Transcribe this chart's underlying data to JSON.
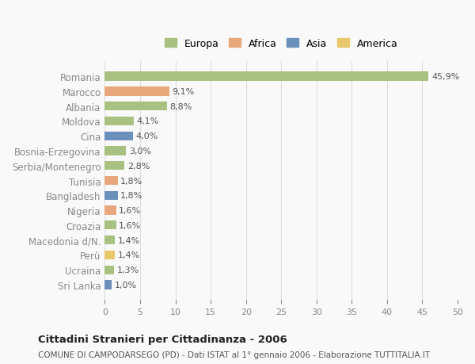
{
  "countries": [
    "Romania",
    "Marocco",
    "Albania",
    "Moldova",
    "Cina",
    "Bosnia-Erzegovina",
    "Serbia/Montenegro",
    "Tunisia",
    "Bangladesh",
    "Nigeria",
    "Croazia",
    "Macedonia d/N.",
    "Perù",
    "Ucraina",
    "Sri Lanka"
  ],
  "values": [
    45.9,
    9.1,
    8.8,
    4.1,
    4.0,
    3.0,
    2.8,
    1.8,
    1.8,
    1.6,
    1.6,
    1.4,
    1.4,
    1.3,
    1.0
  ],
  "labels": [
    "45,9%",
    "9,1%",
    "8,8%",
    "4,1%",
    "4,0%",
    "3,0%",
    "2,8%",
    "1,8%",
    "1,8%",
    "1,6%",
    "1,6%",
    "1,4%",
    "1,4%",
    "1,3%",
    "1,0%"
  ],
  "continents": [
    "Europa",
    "Africa",
    "Europa",
    "Europa",
    "Asia",
    "Europa",
    "Europa",
    "Africa",
    "Asia",
    "Africa",
    "Europa",
    "Europa",
    "America",
    "Europa",
    "Asia"
  ],
  "colors": {
    "Europa": "#a8c080",
    "Africa": "#e8a87c",
    "Asia": "#6a8fbb",
    "America": "#e8c86a"
  },
  "legend_colors": {
    "Europa": "#a8c080",
    "Africa": "#e8a87c",
    "Asia": "#6a8fbb",
    "America": "#e8c86a"
  },
  "xlim": [
    0,
    50
  ],
  "xticks": [
    0,
    5,
    10,
    15,
    20,
    25,
    30,
    35,
    40,
    45,
    50
  ],
  "title": "Cittadini Stranieri per Cittadinanza - 2006",
  "subtitle": "COMUNE DI CAMPODARSEGO (PD) - Dati ISTAT al 1° gennaio 2006 - Elaborazione TUTTITALIA.IT",
  "background_color": "#f9f9f9",
  "grid_color": "#dddddd",
  "bar_height": 0.6
}
